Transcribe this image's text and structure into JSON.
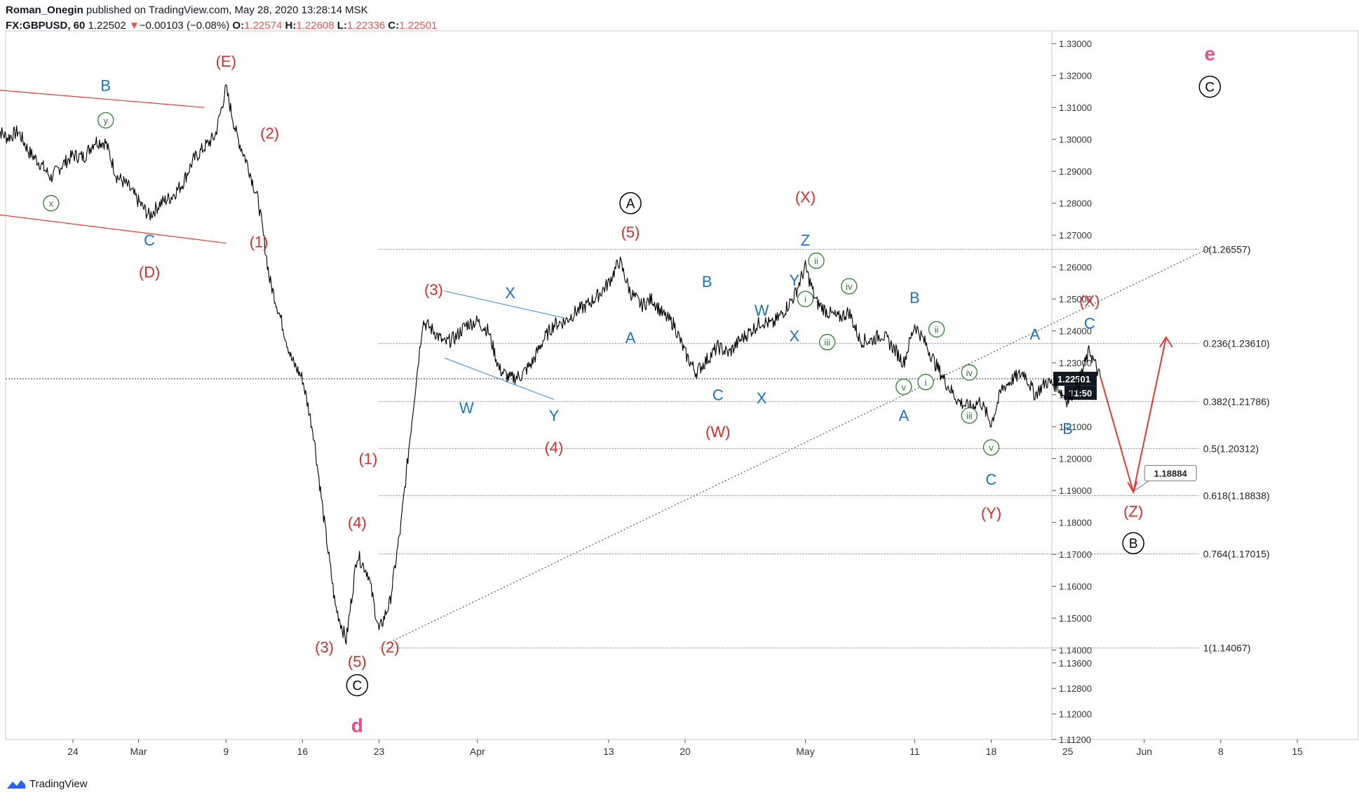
{
  "header": {
    "author": "Roman_Onegin",
    "published_text": "published on TradingView.com, May 28, 2020 13:28:14 MSK",
    "symbol": "FX:GBPUSD, 60",
    "last": "1.22502",
    "change_arrow": "▼",
    "change": "−0.00103 (−0.08%)",
    "o_label": "O:",
    "o_value": "1.22574",
    "h_label": "H:",
    "h_value": "1.22608",
    "l_label": "L:",
    "l_value": "1.22336",
    "c_label": "C:",
    "c_value": "1.22501"
  },
  "footer": {
    "brand": "TradingView"
  },
  "colors": {
    "red": "#d32f2f",
    "blue": "#1e73be",
    "green": "#2e7d32",
    "pink": "#ec4f82",
    "black": "#000000",
    "grid": "#888888"
  },
  "chart_data": {
    "type": "line",
    "title": "FX:GBPUSD, 60",
    "ylim": [
      1.112,
      1.334
    ],
    "y_ticks": [
      "1.33000",
      "1.32000",
      "1.31000",
      "1.30000",
      "1.29000",
      "1.28000",
      "1.27000",
      "1.26000",
      "1.25000",
      "1.24000",
      "1.23000",
      "1.22000",
      "1.21000",
      "1.20000",
      "1.19000",
      "1.18000",
      "1.17000",
      "1.16000",
      "1.15000",
      "1.14000",
      "1.13600",
      "1.12800",
      "1.12000",
      "1.11200"
    ],
    "x_ticks": [
      "24",
      "Mar",
      "9",
      "16",
      "23",
      "Apr",
      "13",
      "20",
      "May",
      "11",
      "18",
      "25",
      "Jun",
      "8",
      "15"
    ],
    "x_tick_dates": [
      "2020-02-24",
      "2020-03-01",
      "2020-03-09",
      "2020-03-16",
      "2020-03-23",
      "2020-04-01",
      "2020-04-13",
      "2020-04-20",
      "2020-05-01",
      "2020-05-11",
      "2020-05-18",
      "2020-05-25",
      "2020-06-01",
      "2020-06-08",
      "2020-06-15"
    ],
    "last_price_label": "1.22501",
    "countdown_label": "31:50",
    "price_series": [
      [
        "2020-02-17",
        1.3035
      ],
      [
        "2020-02-18",
        1.3005
      ],
      [
        "2020-02-19",
        1.3025
      ],
      [
        "2020-02-20",
        1.296
      ],
      [
        "2020-02-21",
        1.2925
      ],
      [
        "2020-02-22",
        1.288
      ],
      [
        "2020-02-23",
        1.292
      ],
      [
        "2020-02-24",
        1.295
      ],
      [
        "2020-02-25",
        1.2945
      ],
      [
        "2020-02-26",
        1.2995
      ],
      [
        "2020-02-27",
        1.299
      ],
      [
        "2020-02-28",
        1.2885
      ],
      [
        "2020-02-29",
        1.2855
      ],
      [
        "2020-03-01",
        1.2805
      ],
      [
        "2020-03-02",
        1.276
      ],
      [
        "2020-03-03",
        1.28
      ],
      [
        "2020-03-04",
        1.282
      ],
      [
        "2020-03-05",
        1.286
      ],
      [
        "2020-03-06",
        1.2935
      ],
      [
        "2020-03-07",
        1.2975
      ],
      [
        "2020-03-08",
        1.301
      ],
      [
        "2020-03-09",
        1.316
      ],
      [
        "2020-03-10",
        1.301
      ],
      [
        "2020-03-11",
        1.292
      ],
      [
        "2020-03-12",
        1.28
      ],
      [
        "2020-03-13",
        1.256
      ],
      [
        "2020-03-14",
        1.244
      ],
      [
        "2020-03-15",
        1.231
      ],
      [
        "2020-03-16",
        1.225
      ],
      [
        "2020-03-17",
        1.208
      ],
      [
        "2020-03-18",
        1.18
      ],
      [
        "2020-03-19",
        1.154
      ],
      [
        "2020-03-20",
        1.143
      ],
      [
        "2020-03-21",
        1.17
      ],
      [
        "2020-03-22",
        1.164
      ],
      [
        "2020-03-23",
        1.146
      ],
      [
        "2020-03-24",
        1.155
      ],
      [
        "2020-03-25",
        1.179
      ],
      [
        "2020-03-26",
        1.212
      ],
      [
        "2020-03-27",
        1.243
      ],
      [
        "2020-03-28",
        1.24
      ],
      [
        "2020-03-29",
        1.236
      ],
      [
        "2020-03-30",
        1.238
      ],
      [
        "2020-03-31",
        1.242
      ],
      [
        "2020-04-01",
        1.243
      ],
      [
        "2020-04-02",
        1.24
      ],
      [
        "2020-04-03",
        1.228
      ],
      [
        "2020-04-04",
        1.225
      ],
      [
        "2020-04-05",
        1.226
      ],
      [
        "2020-04-06",
        1.23
      ],
      [
        "2020-04-07",
        1.237
      ],
      [
        "2020-04-08",
        1.242
      ],
      [
        "2020-04-09",
        1.243
      ],
      [
        "2020-04-10",
        1.246
      ],
      [
        "2020-04-11",
        1.248
      ],
      [
        "2020-04-12",
        1.251
      ],
      [
        "2020-04-13",
        1.255
      ],
      [
        "2020-04-14",
        1.262
      ],
      [
        "2020-04-15",
        1.252
      ],
      [
        "2020-04-16",
        1.248
      ],
      [
        "2020-04-17",
        1.25
      ],
      [
        "2020-04-18",
        1.245
      ],
      [
        "2020-04-19",
        1.242
      ],
      [
        "2020-04-20",
        1.233
      ],
      [
        "2020-04-21",
        1.227
      ],
      [
        "2020-04-22",
        1.231
      ],
      [
        "2020-04-23",
        1.235
      ],
      [
        "2020-04-24",
        1.233
      ],
      [
        "2020-04-25",
        1.237
      ],
      [
        "2020-04-26",
        1.24
      ],
      [
        "2020-04-27",
        1.243
      ],
      [
        "2020-04-28",
        1.242
      ],
      [
        "2020-04-29",
        1.246
      ],
      [
        "2020-04-30",
        1.251
      ],
      [
        "2020-05-01",
        1.26
      ],
      [
        "2020-05-02",
        1.249
      ],
      [
        "2020-05-03",
        1.246
      ],
      [
        "2020-05-04",
        1.244
      ],
      [
        "2020-05-05",
        1.246
      ],
      [
        "2020-05-06",
        1.237
      ],
      [
        "2020-05-07",
        1.237
      ],
      [
        "2020-05-08",
        1.239
      ],
      [
        "2020-05-09",
        1.235
      ],
      [
        "2020-05-10",
        1.23
      ],
      [
        "2020-05-11",
        1.242
      ],
      [
        "2020-05-12",
        1.236
      ],
      [
        "2020-05-13",
        1.229
      ],
      [
        "2020-05-14",
        1.223
      ],
      [
        "2020-05-15",
        1.218
      ],
      [
        "2020-05-16",
        1.216
      ],
      [
        "2020-05-17",
        1.218
      ],
      [
        "2020-05-18",
        1.211
      ],
      [
        "2020-05-19",
        1.222
      ],
      [
        "2020-05-20",
        1.225
      ],
      [
        "2020-05-21",
        1.227
      ],
      [
        "2020-05-22",
        1.22
      ],
      [
        "2020-05-23",
        1.224
      ],
      [
        "2020-05-24",
        1.223
      ],
      [
        "2020-05-25",
        1.218
      ],
      [
        "2020-05-26",
        1.224
      ],
      [
        "2020-05-27",
        1.234
      ],
      [
        "2020-05-28",
        1.225
      ]
    ],
    "fib_levels": [
      {
        "label": "0(1.26557)",
        "value": 1.26557
      },
      {
        "label": "0.236(1.23610)",
        "value": 1.2361
      },
      {
        "label": "0.382(1.21786)",
        "value": 1.21786
      },
      {
        "label": "0.5(1.20312)",
        "value": 1.20312
      },
      {
        "label": "0.618(1.18838)",
        "value": 1.18838
      },
      {
        "label": "0.764(1.17015)",
        "value": 1.17015
      },
      {
        "label": "1(1.14067)",
        "value": 1.14067
      }
    ],
    "target_label": "1.18884",
    "trendlines": [
      {
        "color": "red",
        "from": [
          "2020-02-17",
          1.3155
        ],
        "to": [
          "2020-03-07",
          1.31
        ]
      },
      {
        "color": "red",
        "from": [
          "2020-02-17",
          1.2765
        ],
        "to": [
          "2020-03-09",
          1.2675
        ]
      },
      {
        "color": "blue",
        "from": [
          "2020-03-29",
          1.2525
        ],
        "to": [
          "2020-04-09",
          1.244
        ]
      },
      {
        "color": "blue",
        "from": [
          "2020-03-29",
          1.2315
        ],
        "to": [
          "2020-04-08",
          1.2185
        ]
      },
      {
        "color": "dotted",
        "from": [
          "2020-03-24",
          1.1425
        ],
        "to": [
          "2020-06-07",
          1.266
        ]
      }
    ],
    "projection": [
      [
        "2020-05-28",
        1.2255
      ],
      [
        "2020-05-31",
        1.1895
      ],
      [
        "2020-06-03",
        1.238
      ]
    ],
    "wave_labels": [
      {
        "text": "B",
        "color": "blue",
        "style": "plain",
        "at": [
          "2020-02-27",
          1.317
        ]
      },
      {
        "text": "y",
        "color": "green",
        "style": "circle",
        "at": [
          "2020-02-27",
          1.306
        ]
      },
      {
        "text": "x",
        "color": "green",
        "style": "circle",
        "at": [
          "2020-02-22",
          1.28
        ]
      },
      {
        "text": "C",
        "color": "blue",
        "style": "plain",
        "at": [
          "2020-03-02",
          1.2685
        ]
      },
      {
        "text": "(D)",
        "color": "red",
        "style": "plain",
        "at": [
          "2020-03-02",
          1.2585
        ]
      },
      {
        "text": "(E)",
        "color": "red",
        "style": "plain",
        "at": [
          "2020-03-09",
          1.3245
        ]
      },
      {
        "text": "(2)",
        "color": "red",
        "style": "plain",
        "at": [
          "2020-03-13",
          1.302
        ]
      },
      {
        "text": "(1)",
        "color": "red",
        "style": "plain",
        "at": [
          "2020-03-12",
          1.268
        ]
      },
      {
        "text": "(1)",
        "color": "red",
        "style": "plain",
        "at": [
          "2020-03-22",
          1.2
        ]
      },
      {
        "text": "(4)",
        "color": "red",
        "style": "plain",
        "at": [
          "2020-03-21",
          1.18
        ]
      },
      {
        "text": "(3)",
        "color": "red",
        "style": "plain",
        "at": [
          "2020-03-18",
          1.141
        ]
      },
      {
        "text": "(5)",
        "color": "red",
        "style": "plain",
        "at": [
          "2020-03-21",
          1.1365
        ]
      },
      {
        "text": "(2)",
        "color": "red",
        "style": "plain",
        "at": [
          "2020-03-24",
          1.141
        ]
      },
      {
        "text": "C",
        "color": "black",
        "style": "circle",
        "at": [
          "2020-03-21",
          1.129
        ]
      },
      {
        "text": "d",
        "color": "pink",
        "style": "bold",
        "at": [
          "2020-03-21",
          1.1165
        ]
      },
      {
        "text": "(3)",
        "color": "red",
        "style": "plain",
        "at": [
          "2020-03-28",
          1.253
        ]
      },
      {
        "text": "X",
        "color": "blue",
        "style": "plain",
        "at": [
          "2020-04-04",
          1.252
        ]
      },
      {
        "text": "W",
        "color": "blue",
        "style": "plain",
        "at": [
          "2020-03-31",
          1.216
        ]
      },
      {
        "text": "Y",
        "color": "blue",
        "style": "plain",
        "at": [
          "2020-04-08",
          1.2135
        ]
      },
      {
        "text": "(4)",
        "color": "red",
        "style": "plain",
        "at": [
          "2020-04-08",
          1.2035
        ]
      },
      {
        "text": "A",
        "color": "black",
        "style": "circle",
        "at": [
          "2020-04-15",
          1.28
        ]
      },
      {
        "text": "(5)",
        "color": "red",
        "style": "plain",
        "at": [
          "2020-04-15",
          1.271
        ]
      },
      {
        "text": "A",
        "color": "blue",
        "style": "plain",
        "at": [
          "2020-04-15",
          1.238
        ]
      },
      {
        "text": "B",
        "color": "blue",
        "style": "plain",
        "at": [
          "2020-04-22",
          1.2555
        ]
      },
      {
        "text": "C",
        "color": "blue",
        "style": "plain",
        "at": [
          "2020-04-23",
          1.22
        ]
      },
      {
        "text": "(W)",
        "color": "red",
        "style": "plain",
        "at": [
          "2020-04-23",
          1.2085
        ]
      },
      {
        "text": "W",
        "color": "blue",
        "style": "plain",
        "at": [
          "2020-04-27",
          1.2465
        ]
      },
      {
        "text": "X",
        "color": "blue",
        "style": "plain",
        "at": [
          "2020-04-27",
          1.219
        ]
      },
      {
        "text": "Y",
        "color": "blue",
        "style": "plain",
        "at": [
          "2020-04-30",
          1.256
        ]
      },
      {
        "text": "X",
        "color": "blue",
        "style": "plain",
        "at": [
          "2020-04-30",
          1.2385
        ]
      },
      {
        "text": "(X)",
        "color": "red",
        "style": "plain",
        "at": [
          "2020-05-01",
          1.282
        ]
      },
      {
        "text": "Z",
        "color": "blue",
        "style": "plain",
        "at": [
          "2020-05-01",
          1.2685
        ]
      },
      {
        "text": "ii",
        "color": "green",
        "style": "circle",
        "at": [
          "2020-05-02",
          1.262
        ]
      },
      {
        "text": "i",
        "color": "green",
        "style": "circle",
        "at": [
          "2020-05-01",
          1.25
        ]
      },
      {
        "text": "iv",
        "color": "green",
        "style": "circle",
        "at": [
          "2020-05-05",
          1.254
        ]
      },
      {
        "text": "iii",
        "color": "green",
        "style": "circle",
        "at": [
          "2020-05-03",
          1.2365
        ]
      },
      {
        "text": "B",
        "color": "blue",
        "style": "plain",
        "at": [
          "2020-05-11",
          1.2505
        ]
      },
      {
        "text": "ii",
        "color": "green",
        "style": "circle",
        "at": [
          "2020-05-13",
          1.2405
        ]
      },
      {
        "text": "i",
        "color": "green",
        "style": "circle",
        "at": [
          "2020-05-12",
          1.224
        ]
      },
      {
        "text": "v",
        "color": "green",
        "style": "circle",
        "at": [
          "2020-05-10",
          1.2225
        ]
      },
      {
        "text": "A",
        "color": "blue",
        "style": "plain",
        "at": [
          "2020-05-10",
          1.2135
        ]
      },
      {
        "text": "iv",
        "color": "green",
        "style": "circle",
        "at": [
          "2020-05-16",
          1.227
        ]
      },
      {
        "text": "iii",
        "color": "green",
        "style": "circle",
        "at": [
          "2020-05-16",
          1.2135
        ]
      },
      {
        "text": "v",
        "color": "green",
        "style": "circle",
        "at": [
          "2020-05-18",
          1.2035
        ]
      },
      {
        "text": "C",
        "color": "blue",
        "style": "plain",
        "at": [
          "2020-05-18",
          1.1935
        ]
      },
      {
        "text": "(Y)",
        "color": "red",
        "style": "plain",
        "at": [
          "2020-05-18",
          1.183
        ]
      },
      {
        "text": "A",
        "color": "blue",
        "style": "plain",
        "at": [
          "2020-05-22",
          1.239
        ]
      },
      {
        "text": "B",
        "color": "blue",
        "style": "plain",
        "at": [
          "2020-05-25",
          1.2095
        ]
      },
      {
        "text": "(X)",
        "color": "red",
        "style": "plain",
        "at": [
          "2020-05-27",
          1.2495
        ]
      },
      {
        "text": "C",
        "color": "blue",
        "style": "plain",
        "at": [
          "2020-05-27",
          1.2425
        ]
      },
      {
        "text": "(Z)",
        "color": "red",
        "style": "plain",
        "at": [
          "2020-05-31",
          1.1835
        ]
      },
      {
        "text": "B",
        "color": "black",
        "style": "circle",
        "at": [
          "2020-05-31",
          1.1735
        ]
      },
      {
        "text": "e",
        "color": "pink",
        "style": "bold",
        "at": [
          "2020-06-07",
          1.327
        ]
      },
      {
        "text": "C",
        "color": "black",
        "style": "circle",
        "at": [
          "2020-06-07",
          1.3165
        ]
      }
    ]
  }
}
